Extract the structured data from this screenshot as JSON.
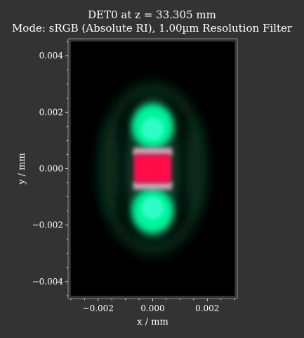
{
  "chart_data": {
    "type": "heatmap",
    "title": "DET0 at z = 33.305 mm",
    "subtitle": "Mode: sRGB (Absolute RI), 1.00µm Resolution Filter",
    "xlabel": "x / mm",
    "ylabel": "y / mm",
    "xlim": [
      -0.0031,
      0.0031
    ],
    "ylim": [
      -0.0046,
      0.0046
    ],
    "x_ticks": [
      -0.002,
      0.0,
      0.002
    ],
    "x_tick_labels": [
      "−0.002",
      "0.000",
      "0.002"
    ],
    "y_ticks": [
      0.004,
      0.002,
      0.0,
      -0.002,
      -0.004
    ],
    "y_tick_labels": [
      "0.004",
      "0.002",
      "0.000",
      "−0.002",
      "−0.004"
    ],
    "image_extent": {
      "x": [
        -0.003,
        0.003
      ],
      "y": [
        -0.0045,
        0.0045
      ]
    },
    "features": [
      {
        "name": "green-lobe-upper",
        "center": [
          0.0,
          0.0015
        ],
        "color": "#00ffa0"
      },
      {
        "name": "red-band-center",
        "center": [
          0.0,
          0.0
        ],
        "color": "#ff1050"
      },
      {
        "name": "green-lobe-lower",
        "center": [
          0.0,
          -0.0015
        ],
        "color": "#00ffa0"
      }
    ],
    "background": "#000000",
    "figure_background": "#333333",
    "grid": false,
    "legend": "none"
  }
}
